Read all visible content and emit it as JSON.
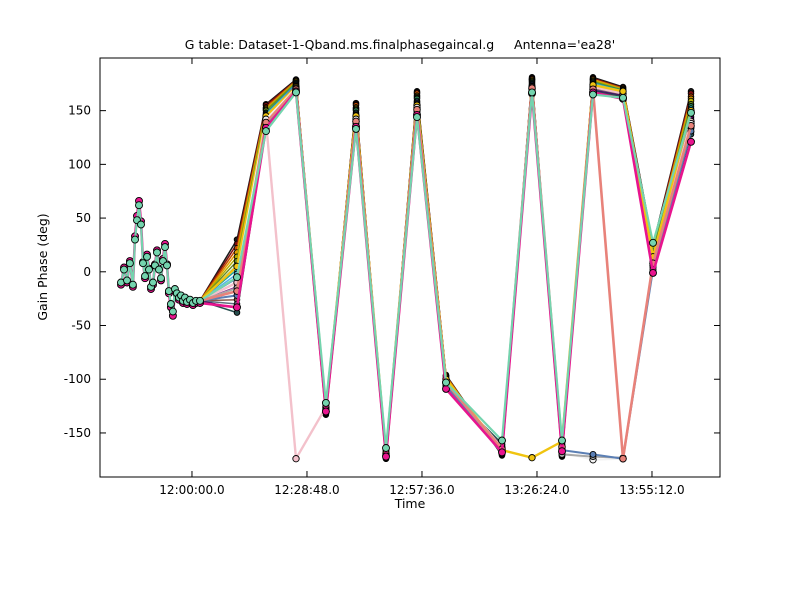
{
  "figure": {
    "background": "#ffffff"
  },
  "chart_data": {
    "type": "line",
    "title_main": "G table: Dataset-1-Qband.ms.finalphasegaincal.g",
    "title_antenna": "Antenna='ea28'",
    "xlabel": "Time",
    "ylabel": "Gain Phase (deg)",
    "grid": false,
    "legend": "none",
    "xlim_seconds": [
      41818,
      51134
    ],
    "ylim_deg": [
      -191,
      199
    ],
    "x_ticks": [
      {
        "label": "12:00:00.0",
        "t": 43200
      },
      {
        "label": "12:28:48.0",
        "t": 44928
      },
      {
        "label": "12:57:36.0",
        "t": 46656
      },
      {
        "label": "13:26:24.0",
        "t": 48384
      },
      {
        "label": "13:55:12.0",
        "t": 50112
      }
    ],
    "y_ticks": [
      {
        "label": "150",
        "v": 150
      },
      {
        "label": "100",
        "v": 100
      },
      {
        "label": "50",
        "v": 50
      },
      {
        "label": "0",
        "v": 0
      },
      {
        "label": "-50",
        "v": -50
      },
      {
        "label": "-100",
        "v": -100
      },
      {
        "label": "-150",
        "v": -150
      }
    ],
    "fan_start": {
      "t": 43320,
      "v": -27
    },
    "scan_times_seconds": [
      43876,
      44312,
      44763,
      45213,
      45664,
      46115,
      46581,
      47017,
      47858,
      48309,
      48760,
      49226,
      49677,
      50128,
      50699
    ],
    "prelude": {
      "t": [
        42133,
        42178,
        42223,
        42268,
        42313,
        42344,
        42374,
        42404,
        42434,
        42464,
        42494,
        42524,
        42554,
        42584,
        42614,
        42644,
        42674,
        42704,
        42734,
        42764,
        42794,
        42824,
        42854,
        42884,
        42914,
        42944,
        42974,
        43005,
        43035,
        43065,
        43095,
        43125,
        43170,
        43215,
        43260,
        43320
      ],
      "mint": [
        -10,
        2,
        -8,
        8,
        -12,
        30,
        48,
        62,
        44,
        8,
        -4,
        14,
        2,
        -14,
        -10,
        6,
        18,
        2,
        -6,
        10,
        23,
        6,
        -18,
        -30,
        -37,
        -16,
        -20,
        -24,
        -22,
        -27,
        -24,
        -28,
        -26,
        -29,
        -27,
        -27
      ],
      "magenta": [
        -12,
        4,
        -10,
        10,
        -14,
        33,
        52,
        66,
        47,
        9,
        -6,
        16,
        3,
        -16,
        -12,
        7,
        20,
        3,
        -8,
        12,
        26,
        7,
        -20,
        -33,
        -41,
        -18,
        -22,
        -26,
        -24,
        -29,
        -26,
        -30,
        -28,
        -31,
        -29,
        -29
      ]
    },
    "series": [
      {
        "name": "black",
        "color": "#1a1a1a",
        "width": 1.5,
        "r": 2.8,
        "prelude": false,
        "values": [
          30,
          156,
          179,
          -133,
          157,
          -174,
          168,
          -96,
          -171,
          181,
          -172,
          181,
          172,
          25,
          168
        ]
      },
      {
        "name": "dark-red",
        "color": "#7f1010",
        "width": 1.5,
        "r": 2.8,
        "prelude": false,
        "values": [
          26,
          155,
          178,
          -132,
          156,
          -174,
          167,
          -97,
          -170,
          180,
          -171,
          180,
          171,
          24,
          166
        ]
      },
      {
        "name": "dark-orange",
        "color": "#c85000",
        "width": 1.5,
        "r": 2.8,
        "prelude": false,
        "values": [
          22,
          153,
          178,
          -132,
          155,
          -173,
          166,
          -97,
          -170,
          179,
          -171,
          179,
          171,
          22,
          163
        ]
      },
      {
        "name": "orange",
        "color": "#e69f00",
        "width": 1.5,
        "r": 2.8,
        "prelude": false,
        "values": [
          18,
          152,
          177,
          -131,
          153,
          -173,
          164,
          -98,
          -169,
          179,
          -170,
          179,
          170,
          21,
          161
        ]
      },
      {
        "name": "olive-yellow",
        "color": "#b8b000",
        "width": 1.5,
        "r": 2.8,
        "prelude": false,
        "values": [
          14,
          151,
          177,
          -131,
          152,
          -172,
          163,
          -99,
          -168,
          178,
          -169,
          178,
          170,
          19,
          159
        ]
      },
      {
        "name": "olive",
        "color": "#6b8e23",
        "width": 1.5,
        "r": 2.8,
        "prelude": false,
        "values": [
          10,
          150,
          176,
          -130,
          151,
          -172,
          162,
          -100,
          -168,
          177,
          -168,
          177,
          169,
          18,
          156
        ]
      },
      {
        "name": "sea-green",
        "color": "#2e8b57",
        "width": 1.5,
        "r": 2.8,
        "prelude": false,
        "values": [
          6,
          148,
          175,
          -130,
          150,
          -171,
          161,
          -100,
          -167,
          176,
          -168,
          176,
          169,
          17,
          154
        ]
      },
      {
        "name": "teal",
        "color": "#1fa0a0",
        "width": 1.5,
        "r": 2.8,
        "prelude": false,
        "values": [
          2,
          147,
          175,
          -129,
          148,
          -171,
          159,
          -101,
          -166,
          175,
          -167,
          176,
          168,
          15,
          152
        ]
      },
      {
        "name": "sky-blue",
        "color": "#56b4e9",
        "width": 1.5,
        "r": 2.8,
        "prelude": false,
        "values": [
          -2,
          146,
          174,
          -129,
          147,
          -170,
          158,
          -102,
          -166,
          174,
          -166,
          175,
          168,
          14,
          149
        ]
      },
      {
        "name": "blue",
        "color": "#3b5fc0",
        "width": 1.5,
        "r": 2.8,
        "prelude": false,
        "values": [
          -6,
          144,
          174,
          -128,
          146,
          -170,
          157,
          -102,
          -165,
          174,
          -166,
          174,
          167,
          12,
          147
        ]
      },
      {
        "name": "slate-violet",
        "color": "#6a5acd",
        "width": 1.5,
        "r": 2.8,
        "prelude": false,
        "values": [
          -10,
          143,
          173,
          -128,
          145,
          -169,
          156,
          -103,
          -165,
          173,
          -165,
          173,
          167,
          11,
          144
        ]
      },
      {
        "name": "dark-magenta",
        "color": "#8b008b",
        "width": 1.5,
        "r": 2.8,
        "prelude": false,
        "values": [
          -14,
          142,
          173,
          -127,
          143,
          -169,
          154,
          -104,
          -164,
          172,
          -164,
          173,
          166,
          9,
          142
        ]
      },
      {
        "name": "violet-red",
        "color": "#c71585",
        "width": 1.5,
        "r": 2.8,
        "prelude": false,
        "values": [
          -18,
          140,
          172,
          -127,
          142,
          -168,
          153,
          -104,
          -163,
          171,
          -164,
          172,
          166,
          8,
          140
        ]
      },
      {
        "name": "brick-red",
        "color": "#cc2a2a",
        "width": 1.5,
        "r": 2.8,
        "prelude": false,
        "values": [
          -22,
          139,
          171,
          -126,
          141,
          -168,
          152,
          -105,
          -163,
          170,
          -163,
          171,
          165,
          7,
          137
        ]
      },
      {
        "name": "brown",
        "color": "#8c564b",
        "width": 1.5,
        "r": 2.8,
        "prelude": false,
        "values": [
          -26,
          138,
          171,
          -125,
          140,
          -167,
          151,
          -106,
          -162,
          169,
          -162,
          170,
          165,
          5,
          135
        ]
      },
      {
        "name": "slate-gray",
        "color": "#607080",
        "width": 1.5,
        "r": 2.8,
        "prelude": false,
        "values": [
          -30,
          137,
          170,
          -125,
          138,
          -167,
          149,
          -107,
          -161,
          169,
          -161,
          170,
          164,
          4,
          133
        ]
      },
      {
        "name": "indigo",
        "color": "#4a0d66",
        "width": 1.5,
        "r": 2.8,
        "prelude": false,
        "values": [
          -34,
          135,
          170,
          -124,
          137,
          -166,
          148,
          -107,
          -161,
          168,
          -161,
          169,
          164,
          2,
          130
        ]
      },
      {
        "name": "dark-slate",
        "color": "#274e4e",
        "width": 1.5,
        "r": 2.8,
        "prelude": false,
        "values": [
          -38,
          134,
          169,
          -124,
          136,
          -166,
          147,
          -108,
          -160,
          167,
          -160,
          168,
          163,
          1,
          128
        ]
      },
      {
        "name": "pale-pink",
        "color": "#f3c1cb",
        "width": 2.4,
        "r": 3.2,
        "prelude": false,
        "values": [
          -10,
          140,
          -174,
          -126,
          140,
          -170,
          152,
          -102,
          -164,
          172,
          -165,
          172,
          166,
          10,
          140
        ]
      },
      {
        "name": "gold",
        "color": "#f0c410",
        "width": 2.4,
        "r": 3.2,
        "prelude": false,
        "values": [
          5,
          145,
          172,
          -128,
          145,
          -169,
          155,
          -100,
          -166,
          -173,
          -158,
          174,
          168,
          14,
          150
        ]
      },
      {
        "name": "white",
        "color": "#f2f2f2",
        "width": 2.0,
        "r": 3.2,
        "prelude": false,
        "values": [
          -5,
          142,
          171,
          -129,
          142,
          -171,
          153,
          -104,
          -167,
          170,
          -168,
          -175,
          -174,
          6,
          138
        ]
      },
      {
        "name": "gray",
        "color": "#a8a8a8",
        "width": 2.0,
        "r": 3.0,
        "prelude": false,
        "values": [
          -15,
          138,
          170,
          -130,
          139,
          -172,
          150,
          -105,
          -168,
          169,
          -170,
          -172,
          -173,
          4,
          134
        ]
      },
      {
        "name": "steel-blue",
        "color": "#5b7fb4",
        "width": 2.0,
        "r": 3.0,
        "prelude": false,
        "values": [
          -22,
          137,
          169,
          -131,
          138,
          -172,
          149,
          -106,
          -169,
          168,
          -166,
          -170,
          -174,
          2,
          131
        ]
      },
      {
        "name": "salmon",
        "color": "#e8827a",
        "width": 2.6,
        "r": 3.3,
        "prelude": false,
        "values": [
          -18,
          139,
          170,
          -130,
          140,
          -171,
          151,
          -103,
          -165,
          171,
          -163,
          170,
          -174,
          8,
          136
        ]
      },
      {
        "name": "magenta",
        "color": "#e8148e",
        "width": 2.6,
        "r": 3.5,
        "prelude": true,
        "values": [
          -33,
          134,
          168,
          -130,
          135,
          -172,
          146,
          -109,
          -168,
          166,
          -167,
          167,
          161,
          -1,
          121
        ]
      },
      {
        "name": "mint",
        "color": "#74d4ae",
        "width": 2.2,
        "r": 3.5,
        "prelude": true,
        "values": [
          -5,
          131,
          167,
          -122,
          133,
          -164,
          144,
          -103,
          -157,
          167,
          -157,
          165,
          162,
          27,
          148
        ]
      }
    ]
  }
}
